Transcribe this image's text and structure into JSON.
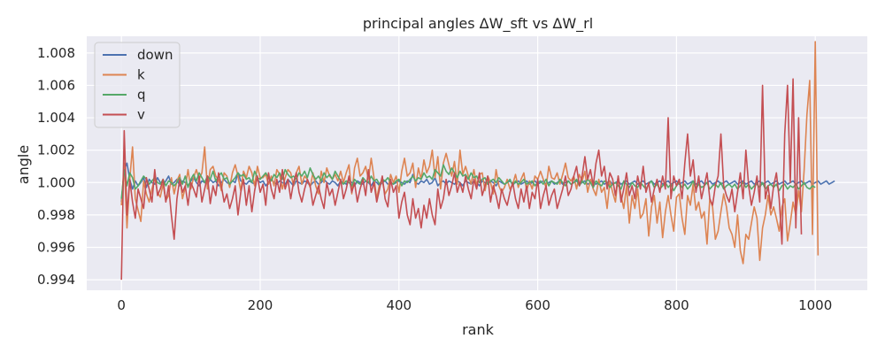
{
  "chart_data": {
    "type": "line",
    "title": "principal angles ΔW_sft vs ΔW_rl",
    "xlabel": "rank",
    "ylabel": "angle",
    "xlim": [
      -50,
      1075
    ],
    "ylim": [
      0.99335,
      1.00903
    ],
    "x_ticks": [
      0,
      200,
      400,
      600,
      800,
      1000
    ],
    "x_tick_labels": [
      "0",
      "200",
      "400",
      "600",
      "800",
      "1000"
    ],
    "y_ticks": [
      0.994,
      0.996,
      0.998,
      1.0,
      1.002,
      1.004,
      1.006,
      1.008
    ],
    "y_tick_labels": [
      "0.994",
      "0.996",
      "0.998",
      "1.000",
      "1.002",
      "1.004",
      "1.006",
      "1.008"
    ],
    "grid": true,
    "legend_position": "upper-left",
    "x_range": [
      0,
      1024
    ],
    "x_step": 4,
    "series": [
      {
        "name": "down",
        "color": "#4c72b0",
        "values": [
          0.9988,
          1.0008,
          1.0012,
          1.0002,
          0.9996,
          1.0001,
          0.9998,
          1.0,
          1.0003,
          0.9997,
          1.0002,
          1.0,
          0.9999,
          1.0003,
          1.0,
          0.9998,
          1.0001,
          1.0004,
          0.9999,
          1.0,
          1.0002,
          0.9998,
          1.0001,
          1.0,
          0.9998,
          1.0001,
          1.0003,
          1.0,
          0.9998,
          1.0001,
          1.0,
          0.9999,
          1.0002,
          1.0,
          1.0001,
          0.9998,
          1.0,
          1.0002,
          1.0,
          0.9999,
          1.0001,
          1.0,
          1.0006,
          1.0001,
          1.0,
          0.9999,
          1.0001,
          1.0,
          0.9999,
          1.0002,
          1.0,
          1.0001,
          0.9998,
          1.0,
          1.0002,
          1.0,
          0.9999,
          1.0001,
          1.0,
          0.9999,
          1.0002,
          1.0,
          0.9998,
          1.0001,
          1.0,
          0.9999,
          1.0001,
          1.0,
          0.9998,
          1.0,
          1.0001,
          0.9999,
          1.0,
          1.0002,
          1.0,
          0.9999,
          1.0001,
          1.0,
          0.9998,
          1.0001,
          1.0,
          0.9999,
          1.0002,
          1.0,
          0.9998,
          1.0001,
          1.0,
          0.9999,
          1.0001,
          1.0,
          0.9998,
          1.0001,
          1.0,
          0.9998,
          1.0,
          1.0001,
          0.9999,
          1.0,
          0.9999,
          1.0,
          1.0001,
          1.0,
          0.9999,
          1.0001,
          1.0,
          1.0005,
          1.0,
          0.9999,
          1.0001,
          1.0,
          1.0002,
          0.9999,
          1.0,
          1.0003,
          0.9998,
          1.0,
          1.0001,
          0.9999,
          1.0001,
          1.0,
          0.9999,
          1.0001,
          1.0,
          0.9998,
          1.0001,
          1.0,
          0.9999,
          1.0001,
          1.0,
          0.9998,
          1.0001,
          1.0,
          0.9999,
          1.0001,
          1.0,
          0.9998,
          1.0001,
          1.0,
          0.9999,
          1.0,
          1.0001,
          0.9999,
          1.0,
          1.0001,
          0.9999,
          1.0,
          1.0001,
          0.9999,
          1.0,
          1.0001,
          0.9999,
          1.0,
          1.0001,
          0.9999,
          1.0,
          1.0001,
          0.9999,
          1.0,
          1.0001,
          0.9999,
          1.0,
          1.0001,
          0.9999,
          1.0,
          1.0001,
          0.9999,
          1.0,
          1.0001,
          0.9999,
          1.0,
          1.0001,
          0.9999,
          1.0,
          1.0001,
          0.9999,
          1.0,
          1.0001,
          0.9999,
          1.0,
          1.0001,
          0.9999,
          1.0,
          1.0001,
          0.9999,
          1.0,
          1.0001,
          0.9999,
          1.0,
          1.0001,
          0.9999,
          1.0,
          1.0001,
          0.9999,
          1.0,
          1.0001,
          0.9999,
          1.0,
          1.0001,
          0.9999,
          1.0,
          1.0001,
          0.9999,
          1.0,
          1.0001,
          0.9999,
          1.0,
          1.0001,
          0.9999,
          1.0,
          1.0001,
          0.9999,
          1.0,
          1.0001,
          0.9999,
          1.0,
          1.0001,
          0.9999,
          1.0,
          1.0001,
          0.9999,
          1.0,
          1.0001,
          0.9999,
          1.0,
          1.0001,
          0.9999,
          1.0,
          1.0001,
          0.9999,
          1.0,
          1.0001,
          0.9999,
          1.0,
          1.0001,
          0.9999,
          1.0,
          1.0001,
          0.9999,
          1.0,
          1.0001,
          0.9999,
          1.0,
          1.0001,
          0.9999,
          1.0,
          1.0001,
          0.9999,
          1.0,
          1.0001,
          0.9999,
          1.0,
          1.0001,
          0.9999,
          1.0,
          1.0001,
          0.9999,
          1.0,
          1.0001
        ]
      },
      {
        "name": "k",
        "color": "#dd8452",
        "values": [
          0.9986,
          1.0012,
          0.9972,
          1.0002,
          1.0022,
          0.999,
          0.9983,
          0.9976,
          1.0001,
          0.9993,
          0.9988,
          0.9996,
          1.0003,
          0.9994,
          0.9991,
          0.9999,
          0.9989,
          0.9992,
          1.0003,
          0.9993,
          1.0001,
          1.0005,
          0.999,
          0.9997,
          1.0008,
          0.9996,
          1.0003,
          1.0008,
          1.0002,
          1.0006,
          1.0022,
          0.9996,
          1.0008,
          1.001,
          1.0004,
          1.0002,
          0.9995,
          1.0006,
          1.0004,
          0.9997,
          1.0006,
          1.0011,
          1.0004,
          0.9995,
          1.0007,
          1.0003,
          1.001,
          1.0006,
          0.9998,
          1.001,
          1.0003,
          1.0003,
          1.0005,
          0.9999,
          1.0004,
          0.9998,
          1.0008,
          1.0005,
          0.9996,
          1.0003,
          1.0008,
          1.0006,
          0.9998,
          1.0006,
          1.001,
          0.9999,
          1.0004,
          1.0002,
          0.9997,
          1.0006,
          0.9998,
          0.9993,
          1.0007,
          1.0,
          1.0009,
          1.0004,
          1.0002,
          1.0005,
          1.0001,
          1.0007,
          1.0,
          1.0006,
          1.0011,
          0.9993,
          1.0009,
          1.0015,
          1.0004,
          1.0006,
          1.001,
          1.0002,
          1.0015,
          1.0003,
          0.999,
          0.9999,
          1.0001,
          0.9993,
          0.9996,
          1.0005,
          1.0,
          1.0004,
          0.9994,
          1.0007,
          1.0015,
          1.0004,
          1.0006,
          1.0012,
          0.9997,
          1.0009,
          1.0002,
          1.0014,
          1.0006,
          1.001,
          1.002,
          1.0003,
          1.0016,
          0.9996,
          1.0012,
          1.0018,
          1.0011,
          1.0004,
          1.0013,
          0.9999,
          1.002,
          1.0005,
          1.001,
          1.0004,
          0.9999,
          1.0008,
          0.9998,
          1.0005,
          1.0006,
          0.9995,
          1.0004,
          1.0,
          0.9993,
          1.0008,
          0.9998,
          0.9994,
          0.9997,
          1.0002,
          0.9996,
          0.9999,
          1.0005,
          0.9997,
          1.0002,
          1.0006,
          0.9995,
          1.0001,
          0.9996,
          1.0004,
          1.0002,
          1.0007,
          1.0002,
          0.9997,
          1.001,
          1.0003,
          1.0002,
          1.0006,
          0.9999,
          1.0005,
          1.0012,
          1.0003,
          1.0001,
          1.0004,
          0.9996,
          1.0005,
          1.0001,
          1.0007,
          0.9994,
          1.0002,
          0.9996,
          0.9992,
          1.0002,
          0.9994,
          0.9997,
          0.9984,
          1.0001,
          0.9994,
          0.9988,
          1.0004,
          0.9992,
          0.9984,
          0.9998,
          0.9975,
          0.9992,
          0.9984,
          0.9996,
          0.9978,
          0.9981,
          0.999,
          0.9967,
          0.9985,
          0.9992,
          0.9975,
          0.9988,
          0.9966,
          0.9982,
          0.9992,
          0.998,
          0.997,
          0.9991,
          0.9993,
          0.9978,
          0.9968,
          0.9992,
          0.9986,
          0.9999,
          0.9983,
          0.9988,
          0.9978,
          0.9982,
          0.9962,
          0.999,
          0.9985,
          0.9965,
          0.997,
          0.9982,
          0.9993,
          0.9985,
          0.9972,
          0.9968,
          0.996,
          0.998,
          0.9958,
          0.995,
          0.9968,
          0.9965,
          0.9975,
          0.9985,
          0.9978,
          0.9952,
          0.9972,
          0.998,
          0.9992,
          0.998,
          0.9985,
          0.9978,
          0.997,
          0.9985,
          0.999,
          0.9964,
          0.9975,
          0.9988,
          0.998,
          0.9995,
          0.9982,
          1.0008,
          1.0042,
          1.0063,
          0.9968,
          1.0087,
          0.9955
        ]
      },
      {
        "name": "q",
        "color": "#55a868",
        "values": [
          0.999,
          1.0008,
          0.9998,
          1.0006,
          1.0003,
          0.9996,
          0.9998,
          1.0001,
          1.0004,
          1.0002,
          0.9999,
          1.0001,
          1.0003,
          1.0,
          0.9999,
          1.0002,
          0.9998,
          1.0001,
          1.0,
          0.9998,
          1.0,
          1.0003,
          0.9999,
          1.0004,
          0.9997,
          1.0002,
          1.0005,
          1.0001,
          1.0006,
          1.0003,
          1.0,
          1.0004,
          1.0002,
          1.0007,
          1.0001,
          1.0004,
          1.0006,
          1.0002,
          1.0003,
          0.9999,
          1.0001,
          1.0003,
          1.0006,
          1.0004,
          1.0005,
          1.0002,
          1.0003,
          1.0,
          1.0007,
          1.0003,
          1.0002,
          1.0004,
          1.0006,
          1.0003,
          1.0001,
          1.0005,
          1.0003,
          1.0006,
          1.0002,
          1.0008,
          1.0005,
          1.0003,
          1.0004,
          1.0002,
          1.0006,
          1.0004,
          1.0007,
          1.0003,
          1.0009,
          1.0005,
          1.0002,
          1.0004,
          1.0001,
          1.0006,
          1.0003,
          1.0005,
          1.0002,
          1.0007,
          1.0004,
          1.0001,
          0.9999,
          1.0001,
          1.0,
          0.9998,
          1.0002,
          1.0,
          0.9999,
          1.0003,
          1.0001,
          1.0,
          1.0004,
          1.0001,
          1.0002,
          0.9999,
          1.0002,
          1.0001,
          1.0003,
          1.0,
          0.9999,
          1.0001,
          1.0002,
          0.9998,
          1.0001,
          1.0,
          1.0002,
          1.0004,
          1.0001,
          1.0003,
          1.0002,
          1.0006,
          1.0003,
          1.0004,
          1.0002,
          1.0008,
          1.0006,
          1.0004,
          1.0011,
          1.0007,
          1.0005,
          1.0009,
          1.0006,
          1.0003,
          1.0007,
          1.0004,
          1.0005,
          1.0002,
          1.0006,
          1.0003,
          1.0004,
          1.0,
          1.0002,
          1.0003,
          0.9999,
          1.0001,
          1.0002,
          1.0,
          1.0003,
          1.0001,
          0.9999,
          1.0,
          1.0002,
          0.9998,
          1.0001,
          0.9999,
          1.0,
          1.0002,
          0.9999,
          1.0,
          1.0001,
          0.9998,
          1.0,
          1.0001,
          0.9999,
          1.0002,
          0.9998,
          1.0001,
          1.0,
          0.9999,
          1.0002,
          1.0,
          0.9998,
          1.0001,
          0.9999,
          1.0,
          1.0002,
          0.9998,
          1.0001,
          0.9999,
          1.0002,
          1.0,
          0.9997,
          1.0001,
          0.9999,
          0.9998,
          1.0001,
          1.0,
          0.9997,
          0.9999,
          1.0,
          0.9998,
          0.9996,
          1.0001,
          0.9999,
          0.9997,
          1.0,
          0.9998,
          0.9997,
          1.0,
          0.9998,
          0.9996,
          0.9999,
          1.0001,
          0.9997,
          0.9999,
          0.9996,
          0.9998,
          1.0,
          0.9997,
          0.9999,
          0.9995,
          0.9998,
          1.0,
          0.9997,
          0.9999,
          0.9996,
          0.9998,
          1.0001,
          0.9996,
          0.9999,
          0.9997,
          0.9998,
          1.0,
          0.9996,
          0.9998,
          0.9999,
          0.9997,
          1.0,
          0.9996,
          0.9998,
          0.9999,
          0.9997,
          0.9999,
          0.9996,
          0.9998,
          1.0,
          0.9997,
          0.9999,
          0.9996,
          0.9998,
          0.9999,
          0.9997,
          1.0,
          0.9996,
          0.9998,
          0.9999,
          0.9997,
          0.9999,
          0.9995,
          0.9998,
          0.9999,
          0.9996,
          0.9998,
          0.9997,
          0.9999,
          0.9996,
          0.9998,
          1.0,
          0.9997,
          0.9996,
          0.9998,
          0.9997
        ]
      },
      {
        "name": "v",
        "color": "#c44e52",
        "values": [
          0.994,
          1.0032,
          0.998,
          1.0002,
          0.9988,
          0.9978,
          0.9996,
          0.999,
          0.9984,
          1.0003,
          0.9996,
          0.9988,
          1.0008,
          0.9992,
          0.9996,
          1.0002,
          0.9988,
          0.9998,
          0.998,
          0.9965,
          0.999,
          1.0002,
          0.9994,
          0.9998,
          0.9986,
          1.0,
          0.9996,
          0.9991,
          1.0004,
          0.9988,
          0.9996,
          1.0004,
          0.9987,
          0.9998,
          0.9992,
          1.0006,
          0.9998,
          0.9988,
          0.9993,
          0.9984,
          0.999,
          0.9998,
          0.998,
          0.9994,
          1.0002,
          0.9986,
          0.9998,
          0.9982,
          0.9995,
          1.0004,
          0.9994,
          0.9999,
          0.9986,
          1.0006,
          0.9996,
          0.999,
          1.0002,
          0.9994,
          1.0008,
          0.9996,
          1.0002,
          0.999,
          1.0,
          1.0006,
          0.9994,
          0.9988,
          0.9996,
          1.0002,
          0.9998,
          0.9986,
          0.9992,
          0.9998,
          0.999,
          0.9984,
          1.0,
          0.9992,
          0.9996,
          0.9986,
          0.9994,
          1.0002,
          0.999,
          0.9996,
          1.0004,
          0.9994,
          1.0,
          0.9988,
          0.9996,
          1.0002,
          0.9992,
          1.0008,
          0.9994,
          1.0,
          0.9988,
          0.9996,
          1.0004,
          0.999,
          0.9985,
          1.0002,
          0.9994,
          0.9998,
          0.9978,
          0.9988,
          0.9994,
          0.998,
          0.9974,
          0.999,
          0.9978,
          0.9984,
          0.9972,
          0.9986,
          0.9978,
          0.999,
          0.998,
          0.9974,
          0.9996,
          0.9984,
          0.999,
          1.0002,
          0.9992,
          0.9998,
          1.0006,
          0.9994,
          1.0,
          0.9994,
          1.0004,
          0.9996,
          0.999,
          1.0002,
          0.9996,
          1.0006,
          0.9992,
          0.9998,
          1.0004,
          0.9988,
          0.9998,
          0.9992,
          0.9984,
          0.9996,
          0.999,
          0.9986,
          0.9994,
          1.0,
          0.999,
          0.9984,
          0.9996,
          0.9988,
          0.9998,
          0.9984,
          0.9994,
          0.999,
          1.0002,
          0.9984,
          0.9992,
          0.9998,
          0.9986,
          0.9992,
          0.9996,
          0.9984,
          0.999,
          0.9996,
          1.0004,
          0.9992,
          0.9996,
          1.0004,
          1.001,
          0.9998,
          1.0004,
          1.0016,
          1.0002,
          1.0008,
          0.9998,
          1.0012,
          1.002,
          1.0004,
          1.001,
          0.9996,
          1.0006,
          1.0002,
          0.9992,
          1.0004,
          0.9988,
          0.9996,
          1.0006,
          0.9992,
          0.9998,
          0.999,
          1.0004,
          0.9996,
          1.001,
          0.9994,
          1.0,
          0.9988,
          0.9996,
          1.0002,
          0.9994,
          1.0004,
          0.9996,
          1.004,
          0.999,
          1.0004,
          0.9998,
          1.0002,
          0.999,
          1.0012,
          1.003,
          1.0004,
          1.0014,
          0.9994,
          1.0004,
          0.999,
          0.9998,
          1.0006,
          0.999,
          0.9986,
          0.9998,
          1.0004,
          1.003,
          0.9998,
          0.9992,
          0.9988,
          0.9996,
          0.9982,
          0.9994,
          1.0006,
          0.999,
          1.002,
          0.9998,
          0.9986,
          0.9994,
          1.0004,
          0.9988,
          1.006,
          0.999,
          0.9998,
          0.9984,
          0.9998,
          1.0006,
          0.999,
          0.9962,
          1.003,
          1.006,
          1.0,
          1.0064,
          0.9972,
          1.004,
          0.9968
        ]
      }
    ]
  }
}
